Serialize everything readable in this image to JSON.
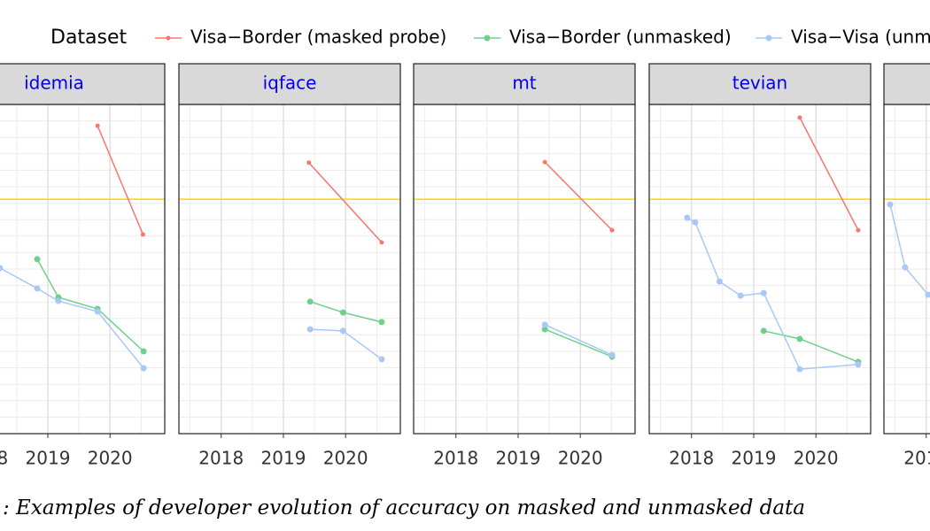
{
  "legend": {
    "title": "Dataset",
    "items": [
      {
        "name": "Visa−Border (masked probe)",
        "color": "#f8766d"
      },
      {
        "name": "Visa−Border (unmasked)",
        "color": "#6fd08c"
      },
      {
        "name": "Visa−Visa (unm",
        "color": "#a9c8f7"
      }
    ]
  },
  "caption": ": Examples of developer evolution of accuracy on masked and unmasked data",
  "chart_data": [
    {
      "type": "line",
      "title": "idemia",
      "xlim": [
        2017.32,
        2020.88
      ],
      "ylim": [
        0,
        1
      ],
      "xticks": [
        2018,
        2019,
        2020
      ],
      "xminor": [
        2017.5,
        2018.5,
        2019.5,
        2020.5
      ],
      "ygrid": [
        0.05,
        0.1,
        0.15,
        0.2,
        0.25,
        0.3,
        0.35,
        0.4,
        0.45,
        0.5,
        0.55,
        0.6,
        0.65,
        0.7,
        0.75,
        0.8,
        0.85,
        0.9,
        0.95
      ],
      "hline": 0.712,
      "hline_color": "#ffd700",
      "series": [
        {
          "name": "Visa−Border (masked probe)",
          "color": "#f8766d",
          "x": [
            2019.8,
            2020.53
          ],
          "values": [
            0.935,
            0.605
          ]
        },
        {
          "name": "Visa−Border (unmasked)",
          "color": "#6fd08c",
          "x": [
            2018.83,
            2019.17,
            2019.8,
            2020.54
          ],
          "values": [
            0.53,
            0.414,
            0.379,
            0.25
          ]
        },
        {
          "name": "Visa−Visa (unm",
          "color": "#a9c8f7",
          "x": [
            2018.23,
            2018.83,
            2019.17,
            2019.8,
            2020.54
          ],
          "values": [
            0.503,
            0.441,
            0.403,
            0.371,
            0.199
          ]
        }
      ]
    },
    {
      "type": "line",
      "title": "iqface",
      "xlim": [
        2017.32,
        2020.88
      ],
      "ylim": [
        0,
        1
      ],
      "xticks": [
        2018,
        2019,
        2020
      ],
      "xminor": [
        2017.5,
        2018.5,
        2019.5,
        2020.5
      ],
      "ygrid": [
        0.05,
        0.1,
        0.15,
        0.2,
        0.25,
        0.3,
        0.35,
        0.4,
        0.45,
        0.5,
        0.55,
        0.6,
        0.65,
        0.7,
        0.75,
        0.8,
        0.85,
        0.9,
        0.95
      ],
      "hline": 0.712,
      "hline_color": "#ffd700",
      "series": [
        {
          "name": "Visa−Border (masked probe)",
          "color": "#f8766d",
          "x": [
            2019.41,
            2020.58
          ],
          "values": [
            0.823,
            0.581
          ]
        },
        {
          "name": "Visa−Border (unmasked)",
          "color": "#6fd08c",
          "x": [
            2019.43,
            2019.96,
            2020.58
          ],
          "values": [
            0.401,
            0.368,
            0.339
          ]
        },
        {
          "name": "Visa−Visa (unm",
          "color": "#a9c8f7",
          "x": [
            2019.43,
            2019.96,
            2020.58
          ],
          "values": [
            0.317,
            0.312,
            0.226
          ]
        }
      ]
    },
    {
      "type": "line",
      "title": "mt",
      "xlim": [
        2017.32,
        2020.88
      ],
      "ylim": [
        0,
        1
      ],
      "xticks": [
        2018,
        2019,
        2020
      ],
      "xminor": [
        2017.5,
        2018.5,
        2019.5,
        2020.5
      ],
      "ygrid": [
        0.05,
        0.1,
        0.15,
        0.2,
        0.25,
        0.3,
        0.35,
        0.4,
        0.45,
        0.5,
        0.55,
        0.6,
        0.65,
        0.7,
        0.75,
        0.8,
        0.85,
        0.9,
        0.95
      ],
      "hline": 0.712,
      "hline_color": "#ffd700",
      "series": [
        {
          "name": "Visa−Border (masked probe)",
          "color": "#f8766d",
          "x": [
            2019.43,
            2020.51
          ],
          "values": [
            0.825,
            0.618
          ]
        },
        {
          "name": "Visa−Border (unmasked)",
          "color": "#6fd08c",
          "x": [
            2019.43,
            2020.51
          ],
          "values": [
            0.317,
            0.234
          ]
        },
        {
          "name": "Visa−Visa (unm",
          "color": "#a9c8f7",
          "x": [
            2019.43,
            2020.51
          ],
          "values": [
            0.331,
            0.239
          ]
        }
      ]
    },
    {
      "type": "line",
      "title": "tevian",
      "xlim": [
        2017.32,
        2020.88
      ],
      "ylim": [
        0,
        1
      ],
      "xticks": [
        2018,
        2019,
        2020
      ],
      "xminor": [
        2017.5,
        2018.5,
        2019.5,
        2020.5
      ],
      "ygrid": [
        0.05,
        0.1,
        0.15,
        0.2,
        0.25,
        0.3,
        0.35,
        0.4,
        0.45,
        0.5,
        0.55,
        0.6,
        0.65,
        0.7,
        0.75,
        0.8,
        0.85,
        0.9,
        0.95
      ],
      "hline": 0.712,
      "hline_color": "#ffd700",
      "series": [
        {
          "name": "Visa−Border (masked probe)",
          "color": "#f8766d",
          "x": [
            2019.74,
            2020.68
          ],
          "values": [
            0.96,
            0.618
          ]
        },
        {
          "name": "Visa−Border (unmasked)",
          "color": "#6fd08c",
          "x": [
            2019.16,
            2019.74,
            2020.68
          ],
          "values": [
            0.312,
            0.288,
            0.218
          ]
        },
        {
          "name": "Visa−Visa (unm",
          "color": "#a9c8f7",
          "x": [
            2017.93,
            2018.06,
            2018.45,
            2018.79,
            2019.16,
            2019.74,
            2020.68
          ],
          "values": [
            0.656,
            0.642,
            0.462,
            0.419,
            0.427,
            0.196,
            0.21
          ]
        }
      ]
    },
    {
      "type": "line",
      "xlim": [
        2017.32,
        2020.88
      ],
      "ylim": [
        0,
        1
      ],
      "xticks": [
        2018,
        2019,
        2020
      ],
      "xminor": [
        2017.5,
        2018.5,
        2019.5,
        2020.5
      ],
      "ygrid": [
        0.05,
        0.1,
        0.15,
        0.2,
        0.25,
        0.3,
        0.35,
        0.4,
        0.45,
        0.5,
        0.55,
        0.6,
        0.65,
        0.7,
        0.75,
        0.8,
        0.85,
        0.9,
        0.95
      ],
      "hline": 0.712,
      "hline_color": "#ffd700",
      "series": [
        {
          "name": "Visa−Visa (unm",
          "color": "#a9c8f7",
          "x": [
            2017.42,
            2017.66,
            2018.03
          ],
          "values": [
            0.696,
            0.505,
            0.422
          ]
        }
      ]
    }
  ]
}
